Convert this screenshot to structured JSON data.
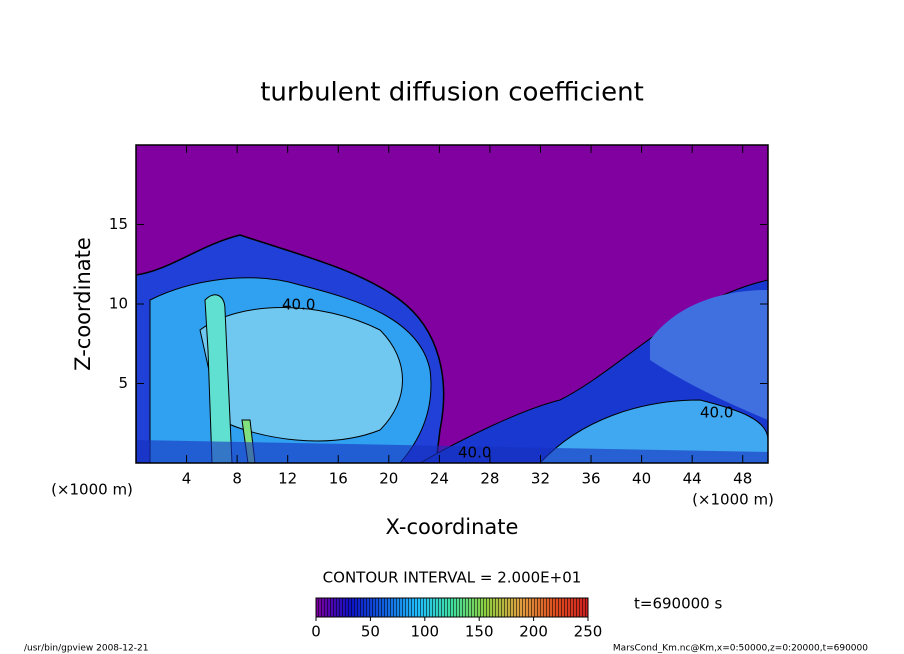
{
  "chart_data": {
    "type": "contour",
    "title": "turbulent diffusion coefficient",
    "x_label": "X-coordinate",
    "y_label": "Z-coordinate",
    "x_unit": "(×1000 m)",
    "y_unit": "(×1000 m)",
    "xlim": [
      0,
      50
    ],
    "xticks": [
      4,
      8,
      12,
      16,
      20,
      24,
      28,
      32,
      36,
      40,
      44,
      48
    ],
    "ylim": [
      0,
      20
    ],
    "yticks": [
      5,
      10,
      15
    ],
    "contour_interval": "CONTOUR INTERVAL = 2.000E+01",
    "contour_labels": [
      "40.0",
      "40.0",
      "40.0"
    ],
    "clim": [
      0,
      250
    ],
    "cticks": [
      0,
      50,
      100,
      150,
      200,
      250
    ],
    "colormap": [
      "#8000a0",
      "#1010c8",
      "#1060e0",
      "#20c0ff",
      "#40e0a0",
      "#90d040",
      "#e0a040",
      "#e05020",
      "#d02020"
    ],
    "time_label": "t=690000 s",
    "footer_left": "/usr/bin/gpview  2008-12-21",
    "footer_right": "MarsCond_Km.nc@Km,x=0:50000,z=0:20000,t=690000"
  }
}
